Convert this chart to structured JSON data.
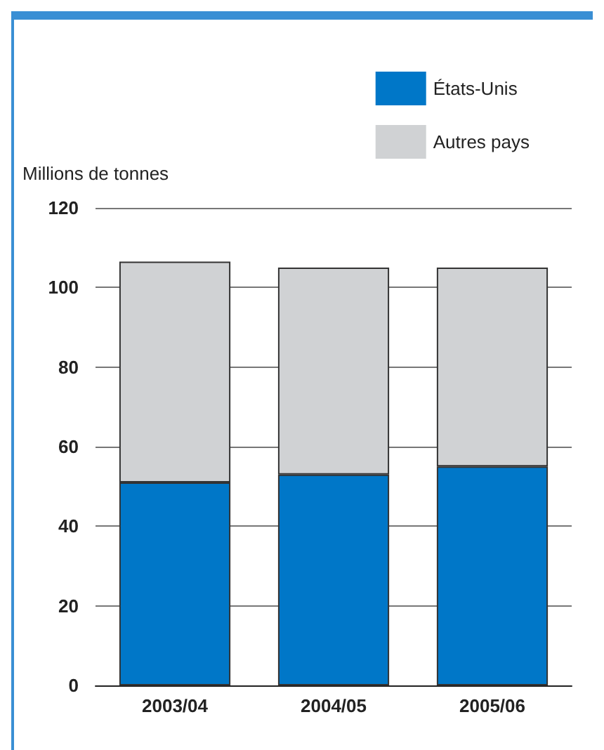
{
  "chart_data": {
    "type": "bar",
    "stacked": true,
    "ylabel": "Millions de tonnes",
    "categories": [
      "2003/04",
      "2004/05",
      "2005/06"
    ],
    "series": [
      {
        "name": "États-Unis",
        "color": "#0077c8",
        "values": [
          51,
          53,
          55
        ]
      },
      {
        "name": "Autres pays",
        "color": "#d0d2d4",
        "values": [
          55.5,
          52,
          50
        ]
      }
    ],
    "ylim": [
      0,
      120
    ],
    "yticks": [
      0,
      20,
      40,
      60,
      80,
      100,
      120
    ],
    "grid": "y",
    "legend": "top right"
  }
}
